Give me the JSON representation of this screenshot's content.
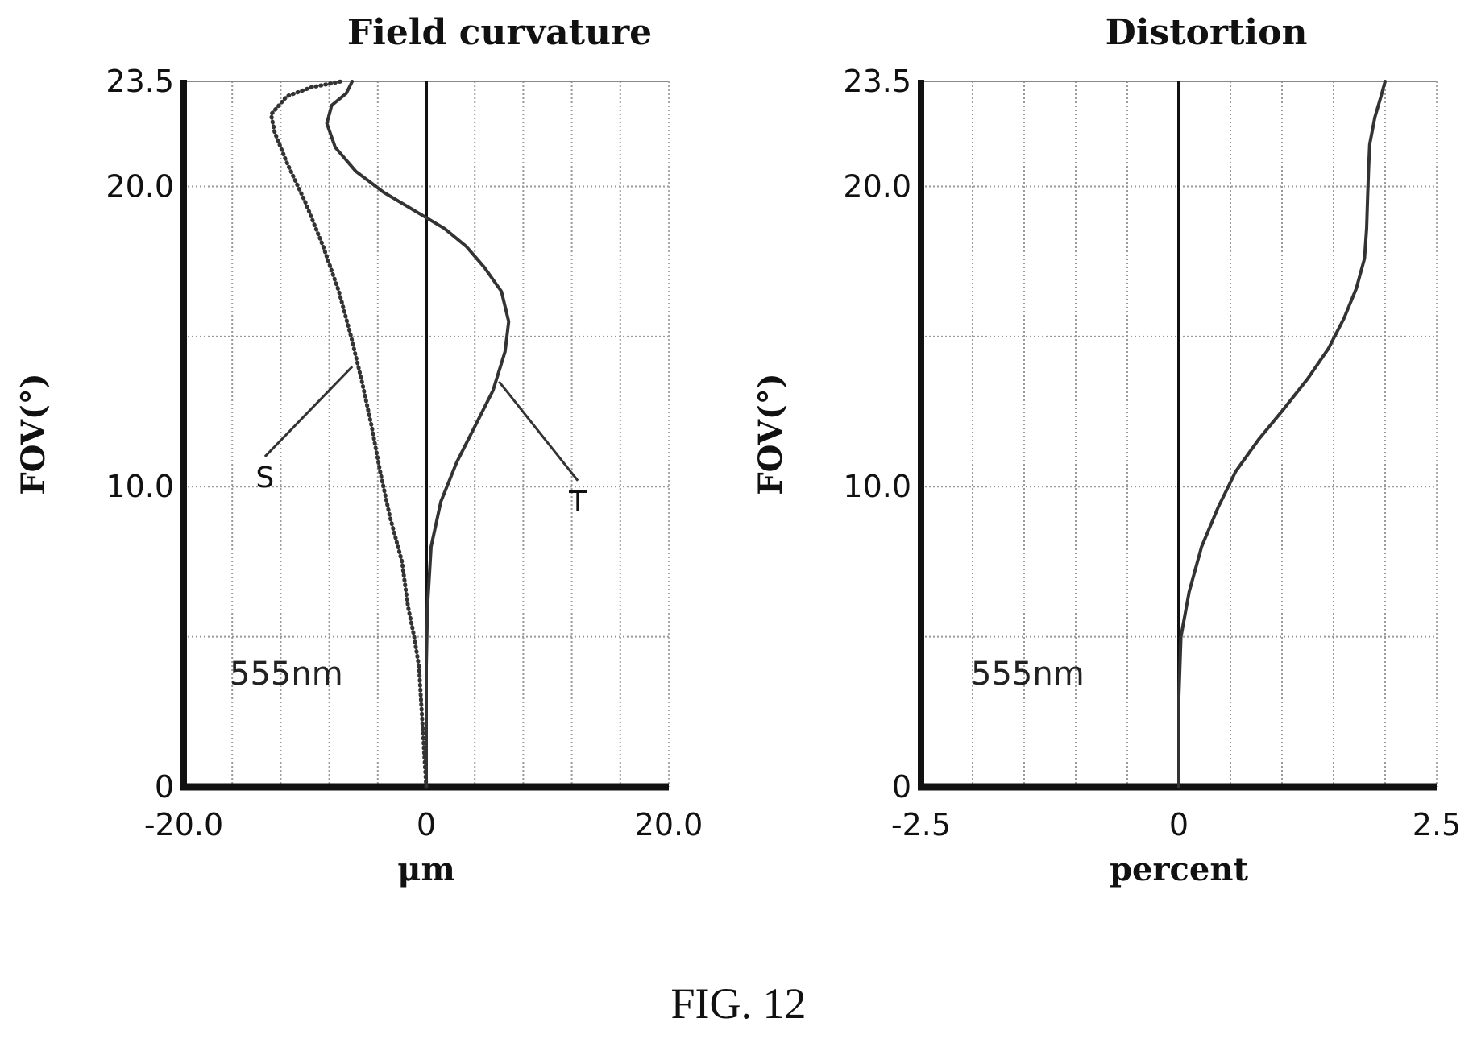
{
  "chart_data": [
    {
      "type": "line",
      "title": "Field curvature",
      "xlabel": "μm",
      "ylabel": "FOV(°)",
      "xlim": [
        -20.0,
        20.0
      ],
      "ylim": [
        0,
        23.5
      ],
      "x_tick_labels": [
        "-20.0",
        "0",
        "20.0"
      ],
      "y_tick_labels": [
        "0",
        "10.0",
        "20.0",
        "23.5"
      ],
      "x_tick_values": [
        -20.0,
        0,
        20.0
      ],
      "y_tick_values": [
        0,
        10.0,
        20.0,
        23.5
      ],
      "x_grid": [
        -16,
        -12,
        -8,
        -4,
        0,
        4,
        8,
        12,
        16
      ],
      "y_grid": [
        5,
        10,
        15,
        20
      ],
      "grid": true,
      "annotation": "555nm",
      "series": [
        {
          "name": "S",
          "style": "dotted",
          "points": [
            [
              0,
              0
            ],
            [
              -0.3,
              2
            ],
            [
              -0.6,
              4
            ],
            [
              -1,
              5
            ],
            [
              -1.5,
              6
            ],
            [
              -2,
              7.5
            ],
            [
              -3,
              9
            ],
            [
              -3.8,
              10.5
            ],
            [
              -4.5,
              12
            ],
            [
              -5.3,
              13.5
            ],
            [
              -6.2,
              15
            ],
            [
              -7.2,
              16.5
            ],
            [
              -8.5,
              18
            ],
            [
              -10,
              19.5
            ],
            [
              -11.5,
              20.8
            ],
            [
              -12.5,
              21.8
            ],
            [
              -12.8,
              22.4
            ],
            [
              -11.5,
              23.0
            ],
            [
              -9.5,
              23.3
            ],
            [
              -7,
              23.5
            ]
          ]
        },
        {
          "name": "T",
          "style": "solid",
          "points": [
            [
              0,
              0
            ],
            [
              0,
              2
            ],
            [
              0,
              4
            ],
            [
              0.1,
              6
            ],
            [
              0.4,
              8
            ],
            [
              1.2,
              9.5
            ],
            [
              2.5,
              10.8
            ],
            [
              4,
              12
            ],
            [
              5.5,
              13.2
            ],
            [
              6.5,
              14.5
            ],
            [
              6.8,
              15.5
            ],
            [
              6.2,
              16.5
            ],
            [
              4.8,
              17.3
            ],
            [
              3.3,
              18
            ],
            [
              1.5,
              18.6
            ],
            [
              -1,
              19.2
            ],
            [
              -3.5,
              19.8
            ],
            [
              -5.8,
              20.5
            ],
            [
              -7.5,
              21.3
            ],
            [
              -8.2,
              22.1
            ],
            [
              -7.8,
              22.7
            ],
            [
              -6.6,
              23.1
            ],
            [
              -6.1,
              23.5
            ]
          ]
        }
      ],
      "labels": [
        {
          "text": "S",
          "point": [
            -6.1,
            14.0
          ],
          "text_pos": [
            -13.3,
            11.0
          ]
        },
        {
          "text": "T",
          "point": [
            6.0,
            13.5
          ],
          "text_pos": [
            12.5,
            10.2
          ]
        }
      ]
    },
    {
      "type": "line",
      "title": "Distortion",
      "xlabel": "percent",
      "ylabel": "FOV(°)",
      "xlim": [
        -2.5,
        2.5
      ],
      "ylim": [
        0,
        23.5
      ],
      "x_tick_labels": [
        "-2.5",
        "0",
        "2.5"
      ],
      "y_tick_labels": [
        "0",
        "10.0",
        "20.0",
        "23.5"
      ],
      "x_tick_values": [
        -2.5,
        0,
        2.5
      ],
      "y_tick_values": [
        0,
        10.0,
        20.0,
        23.5
      ],
      "x_grid": [
        -2.0,
        -1.5,
        -1.0,
        -0.5,
        0,
        0.5,
        1.0,
        1.5,
        2.0
      ],
      "y_grid": [
        5,
        10,
        15,
        20
      ],
      "grid": true,
      "annotation": "555nm",
      "series": [
        {
          "name": "",
          "style": "solid",
          "points": [
            [
              0,
              0
            ],
            [
              0,
              3
            ],
            [
              0.02,
              5
            ],
            [
              0.1,
              6.5
            ],
            [
              0.22,
              8
            ],
            [
              0.38,
              9.3
            ],
            [
              0.55,
              10.5
            ],
            [
              0.78,
              11.6
            ],
            [
              1.02,
              12.6
            ],
            [
              1.25,
              13.6
            ],
            [
              1.45,
              14.6
            ],
            [
              1.6,
              15.6
            ],
            [
              1.72,
              16.6
            ],
            [
              1.8,
              17.6
            ],
            [
              1.82,
              18.6
            ],
            [
              1.83,
              19.6
            ],
            [
              1.84,
              20.6
            ],
            [
              1.85,
              21.4
            ],
            [
              1.9,
              22.3
            ],
            [
              1.96,
              23.0
            ],
            [
              2.0,
              23.5
            ]
          ]
        }
      ]
    }
  ],
  "figure": {
    "caption": "FIG. 12"
  }
}
